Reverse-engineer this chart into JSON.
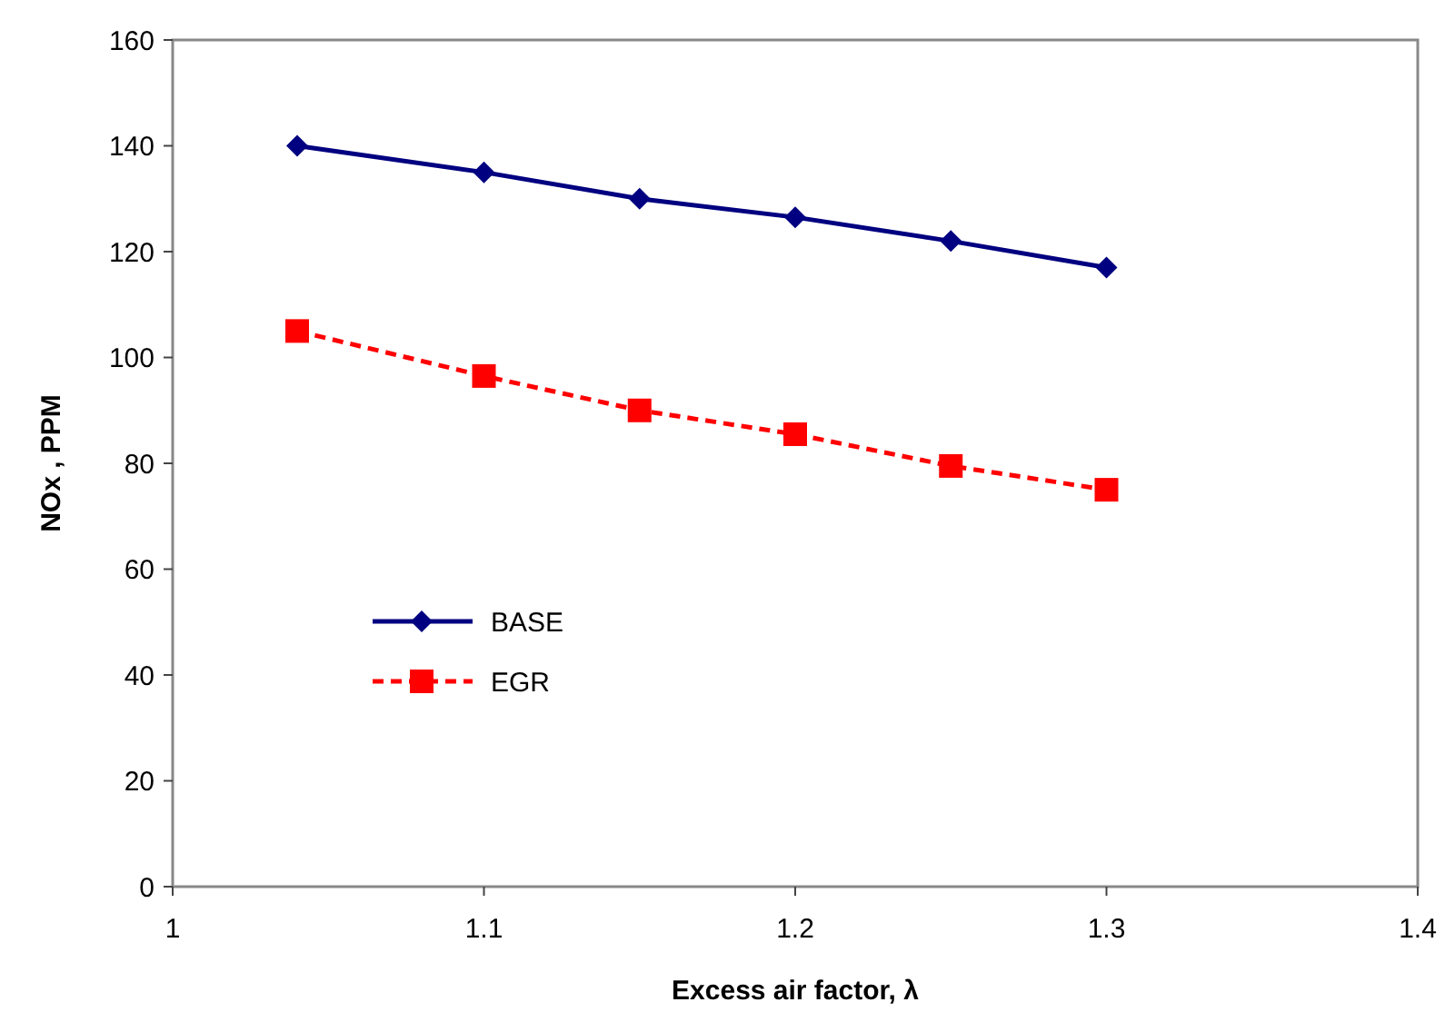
{
  "chart_data": {
    "type": "line",
    "xlabel": "Excess air factor, λ",
    "ylabel": "NOx , PPM",
    "x": [
      1.04,
      1.1,
      1.15,
      1.2,
      1.25,
      1.3
    ],
    "series": [
      {
        "name": "BASE",
        "color": "#000080",
        "values": [
          140,
          135,
          130,
          126.5,
          122,
          117
        ],
        "marker": "diamond",
        "line_style": "solid"
      },
      {
        "name": "EGR",
        "color": "#ff0000",
        "values": [
          105,
          96.5,
          90,
          85.5,
          79.5,
          75
        ],
        "marker": "square",
        "line_style": "dashed"
      }
    ],
    "xlim": [
      1,
      1.4
    ],
    "xticks": [
      1,
      1.1,
      1.2,
      1.3,
      1.4
    ],
    "ylim": [
      0,
      160
    ],
    "yticks": [
      0,
      20,
      40,
      60,
      80,
      100,
      120,
      140,
      160
    ],
    "grid": false,
    "legend": "left"
  }
}
